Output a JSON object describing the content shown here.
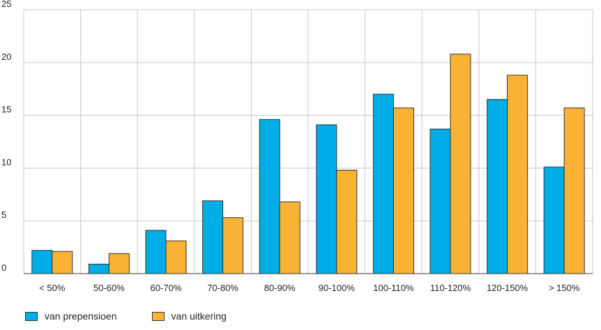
{
  "chart_data": {
    "type": "bar",
    "categories": [
      "< 50%",
      "50-60%",
      "60-70%",
      "70-80%",
      "80-90%",
      "90-100%",
      "100-110%",
      "110-120%",
      "120-150%",
      "> 150%"
    ],
    "series": [
      {
        "name": "van prepensioen",
        "color": "#00ade6",
        "values": [
          2.2,
          0.9,
          4.1,
          6.9,
          14.6,
          14.1,
          17.0,
          13.7,
          16.5,
          10.1
        ]
      },
      {
        "name": "van uitkering",
        "color": "#f9b233",
        "values": [
          2.1,
          1.9,
          3.1,
          5.3,
          6.8,
          9.8,
          15.7,
          20.8,
          18.8,
          15.7
        ]
      }
    ],
    "ylim": [
      0,
      25
    ],
    "yticks": [
      0,
      5,
      10,
      15,
      20,
      25
    ],
    "grid": true,
    "legend_position": "bottom-left",
    "title": "",
    "xlabel": "",
    "ylabel": ""
  }
}
